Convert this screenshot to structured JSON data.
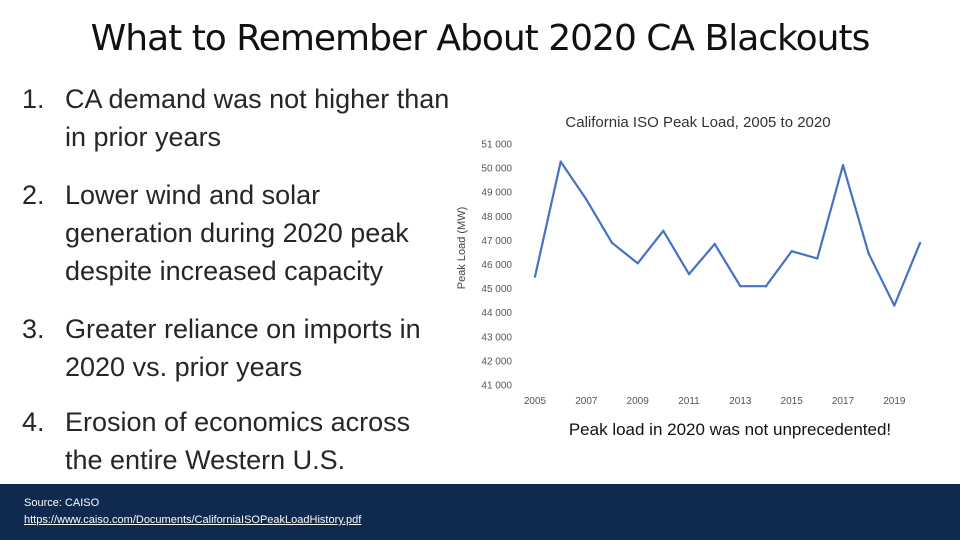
{
  "title": "What to Remember About 2020 CA Blackouts",
  "bullets": [
    {
      "num": "1.",
      "text": "CA demand was not higher than in prior years"
    },
    {
      "num": "2.",
      "text": "Lower wind and solar generation during 2020 peak despite increased capacity"
    },
    {
      "num": "3.",
      "text": "Greater reliance on imports in 2020 vs. prior years"
    },
    {
      "num": "4.",
      "text": "Erosion of economics across the entire Western U.S."
    }
  ],
  "caption": "Peak load in 2020 was not unprecedented!",
  "source": {
    "label": "Source: CAISO",
    "url": "https://www.caiso.com/Documents/CaliforniaISOPeakLoadHistory.pdf"
  },
  "chart_data": {
    "type": "line",
    "title": "California ISO Peak Load, 2005 to 2020",
    "xlabel": "",
    "ylabel": "Peak Load (MW)",
    "x": [
      2005,
      2006,
      2007,
      2008,
      2009,
      2010,
      2011,
      2012,
      2013,
      2014,
      2015,
      2016,
      2017,
      2018,
      2019,
      2020
    ],
    "series": [
      {
        "values": [
          45500,
          50270,
          48700,
          46900,
          46050,
          47400,
          45600,
          46850,
          45100,
          45100,
          46550,
          46250,
          50120,
          46450,
          44300,
          46890
        ]
      }
    ],
    "xticks": [
      "2005",
      "2007",
      "2009",
      "2011",
      "2013",
      "2015",
      "2017",
      "2019"
    ],
    "yticks": [
      "41 000",
      "42 000",
      "43 000",
      "44 000",
      "45 000",
      "46 000",
      "47 000",
      "48 000",
      "49 000",
      "50 000",
      "51 000"
    ],
    "ylim": [
      41000,
      51000
    ],
    "line_color": "#4472c4",
    "grid": false,
    "legend": "none"
  }
}
